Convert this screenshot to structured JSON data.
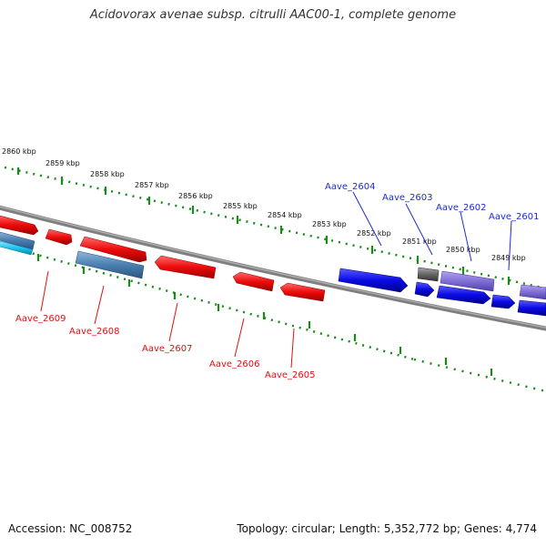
{
  "header": {
    "title": "Acidovorax avenae subsp. citrulli AAC00-1, complete genome"
  },
  "footer": {
    "accession": "Accession: NC_008752",
    "summary": "Topology: circular; Length: 5,352,772 bp; Genes: 4,774"
  },
  "ruler": {
    "unit": "kbp",
    "labels": [
      "2860 kbp",
      "2859 kbp",
      "2858 kbp",
      "2857 kbp",
      "2856 kbp",
      "2855 kbp",
      "2854 kbp",
      "2853 kbp",
      "2852 kbp",
      "2851 kbp",
      "2850 kbp",
      "2849 kbp"
    ]
  },
  "genes": {
    "forward": [
      {
        "name": "Aave_2604"
      },
      {
        "name": "Aave_2603"
      },
      {
        "name": "Aave_2602"
      },
      {
        "name": "Aave_2601"
      }
    ],
    "reverse": [
      {
        "name": "Aave_2609"
      },
      {
        "name": "Aave_2608"
      },
      {
        "name": "Aave_2607"
      },
      {
        "name": "Aave_2606"
      },
      {
        "name": "Aave_2605"
      }
    ]
  },
  "colors": {
    "forward_strand": "#0a0ae6",
    "forward_dim": "#7f6fd6",
    "reverse_strand": "#ee0b0b",
    "reverse_dim": "#4a7fb0",
    "rna": "#1ec8f0",
    "backbone": "#7f7f7f",
    "ticks": "#1a8a1a",
    "neutral_gene": "#666666"
  }
}
